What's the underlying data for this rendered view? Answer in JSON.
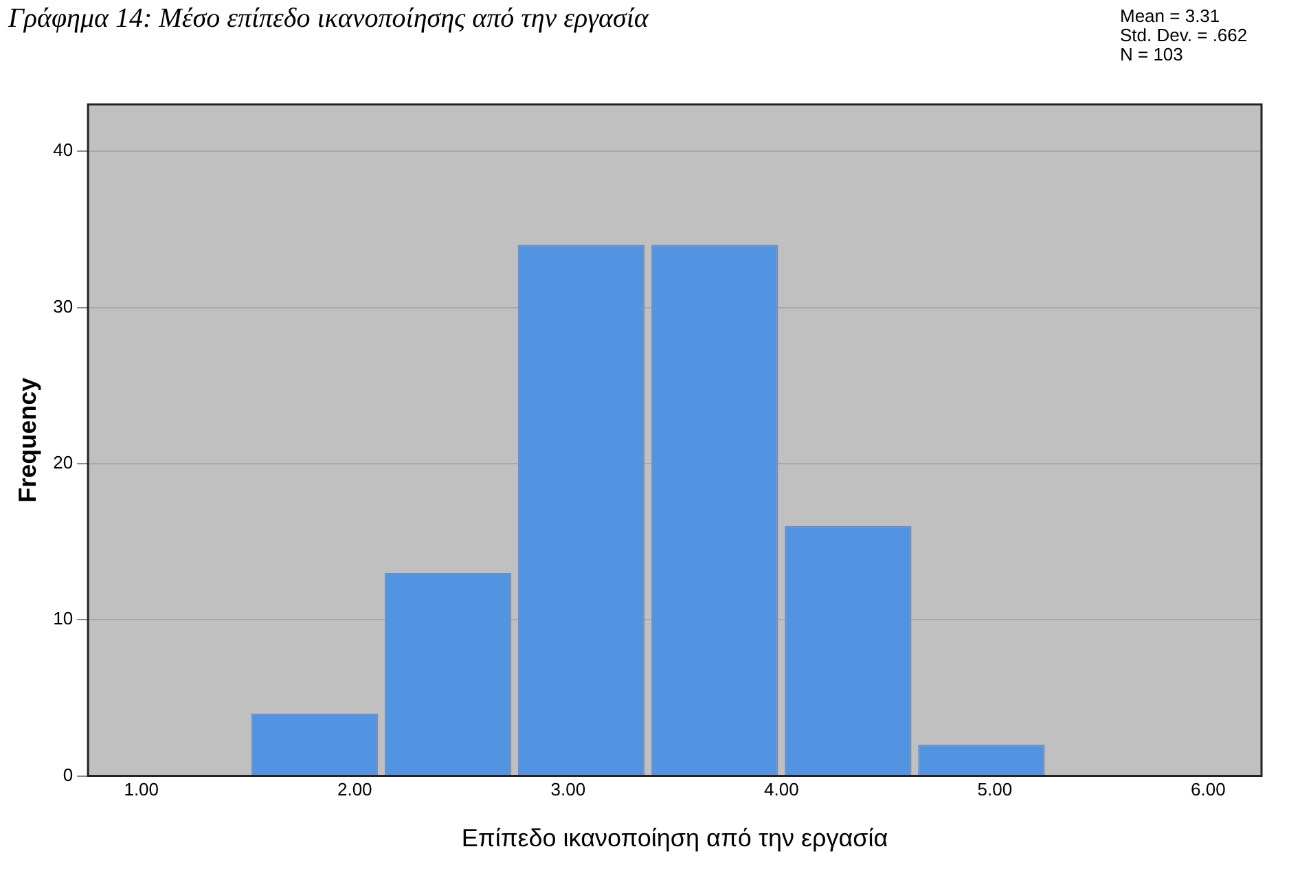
{
  "chart_data": {
    "type": "histogram",
    "title": "Γράφημα 14: Μέσο επίπεδο ικανοποίησης από την εργασία",
    "xlabel": "Επίπεδο ικανοποίηση από την εργασία",
    "ylabel": "Frequency",
    "bins": [
      1.5,
      2.125,
      2.75,
      3.375,
      4.0,
      4.625,
      5.25
    ],
    "values": [
      4,
      13,
      34,
      34,
      16,
      2
    ],
    "color": "#5294e2",
    "xlim": [
      0.75,
      6.25
    ],
    "xticks": [
      {
        "value": 1,
        "label": "1.00"
      },
      {
        "value": 2,
        "label": "2.00"
      },
      {
        "value": 3,
        "label": "3.00"
      },
      {
        "value": 4,
        "label": "4.00"
      },
      {
        "value": 5,
        "label": "5.00"
      },
      {
        "value": 6,
        "label": "6.00"
      }
    ],
    "ylim": [
      0,
      43
    ],
    "yticks": [
      0,
      10,
      20,
      30,
      40
    ],
    "grid": "y",
    "annotations": [
      "Mean = 3.31",
      "Std. Dev. = .662",
      "N = 103"
    ]
  }
}
